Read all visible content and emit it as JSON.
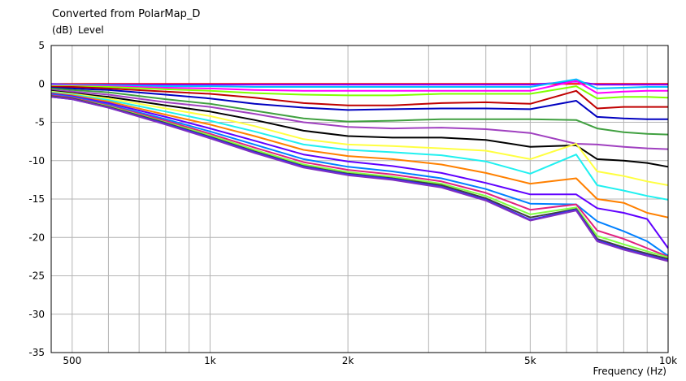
{
  "chart_data": {
    "type": "line",
    "title": "Converted from PolarMap_D",
    "ylabel_unit": "(dB)",
    "ylabel": "Level",
    "xlabel": "Frequency  (Hz)",
    "xscale": "log",
    "xlim": [
      450,
      10000
    ],
    "ylim": [
      -35,
      5
    ],
    "grid": true,
    "x_ticks": [
      {
        "value": 500,
        "label": "500"
      },
      {
        "value": 1000,
        "label": "1k"
      },
      {
        "value": 2000,
        "label": "2k"
      },
      {
        "value": 5000,
        "label": "5k"
      },
      {
        "value": 10000,
        "label": "10k"
      }
    ],
    "y_ticks": [
      5,
      0,
      -5,
      -10,
      -15,
      -20,
      -25,
      -30,
      -35
    ],
    "x": [
      450,
      500,
      600,
      800,
      1000,
      1250,
      1600,
      2000,
      2500,
      3200,
      4000,
      5000,
      6300,
      7000,
      8000,
      9000,
      10000
    ],
    "series": [
      {
        "color": "#ff0000",
        "values": [
          0.0,
          0.0,
          0.0,
          0.0,
          0.0,
          0.0,
          0.0,
          0.0,
          0.0,
          0.0,
          0.0,
          0.0,
          0.0,
          0.0,
          0.0,
          0.0,
          0.0
        ]
      },
      {
        "color": "#8000ff",
        "values": [
          0.0,
          -0.1,
          -0.1,
          -0.1,
          -0.1,
          -0.1,
          -0.1,
          -0.1,
          -0.1,
          -0.1,
          -0.1,
          -0.1,
          0.3,
          -0.1,
          -0.1,
          -0.1,
          -0.1
        ]
      },
      {
        "color": "#00c0ff",
        "values": [
          -0.1,
          -0.1,
          -0.2,
          -0.3,
          -0.3,
          -0.4,
          -0.4,
          -0.4,
          -0.4,
          -0.4,
          -0.4,
          -0.4,
          0.6,
          -0.6,
          -0.5,
          -0.4,
          -0.4
        ]
      },
      {
        "color": "#ff00ff",
        "values": [
          -0.2,
          -0.2,
          -0.3,
          -0.5,
          -0.6,
          -0.8,
          -0.9,
          -0.9,
          -0.9,
          -0.9,
          -0.9,
          -0.9,
          0.4,
          -1.2,
          -1.0,
          -0.9,
          -0.9
        ]
      },
      {
        "color": "#80ff00",
        "values": [
          -0.3,
          -0.3,
          -0.4,
          -0.7,
          -0.9,
          -1.2,
          -1.4,
          -1.5,
          -1.5,
          -1.3,
          -1.3,
          -1.3,
          -0.3,
          -1.9,
          -1.7,
          -1.7,
          -1.8
        ]
      },
      {
        "color": "#c00000",
        "values": [
          -0.4,
          -0.4,
          -0.6,
          -1.0,
          -1.3,
          -1.8,
          -2.5,
          -2.8,
          -2.8,
          -2.5,
          -2.4,
          -2.6,
          -0.9,
          -3.2,
          -3.0,
          -3.0,
          -3.0
        ]
      },
      {
        "color": "#0000c0",
        "values": [
          -0.5,
          -0.6,
          -0.8,
          -1.4,
          -1.9,
          -2.6,
          -3.1,
          -3.4,
          -3.3,
          -3.2,
          -3.2,
          -3.3,
          -2.2,
          -4.3,
          -4.5,
          -4.6,
          -4.6
        ]
      },
      {
        "color": "#40a040",
        "values": [
          -0.6,
          -0.8,
          -1.1,
          -2.0,
          -2.6,
          -3.5,
          -4.5,
          -4.9,
          -4.8,
          -4.6,
          -4.6,
          -4.6,
          -4.7,
          -5.8,
          -6.3,
          -6.5,
          -6.6
        ]
      },
      {
        "color": "#a040c0",
        "values": [
          -0.8,
          -1.0,
          -1.4,
          -2.4,
          -3.0,
          -3.9,
          -5.0,
          -5.6,
          -5.8,
          -5.7,
          -5.9,
          -6.4,
          -7.8,
          -7.9,
          -8.2,
          -8.4,
          -8.5
        ]
      },
      {
        "color": "#000000",
        "values": [
          -0.9,
          -1.2,
          -1.7,
          -2.8,
          -3.6,
          -4.7,
          -6.1,
          -6.8,
          -7.0,
          -7.0,
          -7.3,
          -8.2,
          -8.0,
          -9.8,
          -10.0,
          -10.3,
          -10.8
        ]
      },
      {
        "color": "#ffff40",
        "values": [
          -1.0,
          -1.3,
          -1.9,
          -3.2,
          -4.2,
          -5.5,
          -7.2,
          -7.9,
          -8.1,
          -8.4,
          -8.7,
          -9.8,
          -7.8,
          -11.4,
          -12.0,
          -12.7,
          -13.2
        ]
      },
      {
        "color": "#20f0f0",
        "values": [
          -1.1,
          -1.4,
          -2.1,
          -3.6,
          -4.8,
          -6.2,
          -7.9,
          -8.6,
          -8.9,
          -9.3,
          -10.1,
          -11.7,
          -9.2,
          -13.2,
          -13.9,
          -14.6,
          -15.1
        ]
      },
      {
        "color": "#ff8000",
        "values": [
          -1.2,
          -1.5,
          -2.3,
          -4.0,
          -5.3,
          -6.8,
          -8.6,
          -9.4,
          -9.8,
          -10.5,
          -11.6,
          -13.0,
          -12.3,
          -15.0,
          -15.5,
          -16.8,
          -17.4
        ]
      },
      {
        "color": "#6000ff",
        "values": [
          -1.3,
          -1.6,
          -2.5,
          -4.3,
          -5.8,
          -7.4,
          -9.2,
          -10.1,
          -10.7,
          -11.6,
          -12.9,
          -14.4,
          -14.4,
          -16.2,
          -16.8,
          -17.6,
          -21.4
        ]
      },
      {
        "color": "#0080ff",
        "values": [
          -1.4,
          -1.7,
          -2.7,
          -4.6,
          -6.2,
          -7.9,
          -9.8,
          -10.8,
          -11.4,
          -12.3,
          -13.7,
          -15.6,
          -15.7,
          -17.9,
          -19.2,
          -20.5,
          -22.4
        ]
      },
      {
        "color": "#e02080",
        "values": [
          -1.5,
          -1.8,
          -2.8,
          -4.8,
          -6.5,
          -8.3,
          -10.2,
          -11.2,
          -11.8,
          -12.7,
          -14.2,
          -16.4,
          -15.7,
          -19.1,
          -20.2,
          -21.4,
          -22.5
        ]
      },
      {
        "color": "#80ff40",
        "values": [
          -1.6,
          -1.9,
          -2.9,
          -5.0,
          -6.7,
          -8.6,
          -10.5,
          -11.5,
          -12.1,
          -13.0,
          -14.6,
          -17.0,
          -16.1,
          -19.8,
          -20.9,
          -21.8,
          -22.6
        ]
      },
      {
        "color": "#404040",
        "values": [
          -1.6,
          -1.9,
          -3.0,
          -5.1,
          -6.9,
          -8.8,
          -10.7,
          -11.7,
          -12.3,
          -13.2,
          -14.9,
          -17.4,
          -16.3,
          -20.2,
          -21.3,
          -22.1,
          -22.8
        ]
      },
      {
        "color": "#3030ff",
        "values": [
          -1.7,
          -2.0,
          -3.1,
          -5.2,
          -7.0,
          -8.9,
          -10.8,
          -11.8,
          -12.4,
          -13.4,
          -15.1,
          -17.7,
          -16.4,
          -20.4,
          -21.5,
          -22.3,
          -23.0
        ]
      },
      {
        "color": "#8030c0",
        "values": [
          -1.7,
          -2.0,
          -3.1,
          -5.3,
          -7.1,
          -9.0,
          -10.9,
          -11.9,
          -12.5,
          -13.5,
          -15.2,
          -17.8,
          -16.5,
          -20.5,
          -21.6,
          -22.4,
          -23.1
        ]
      }
    ]
  }
}
